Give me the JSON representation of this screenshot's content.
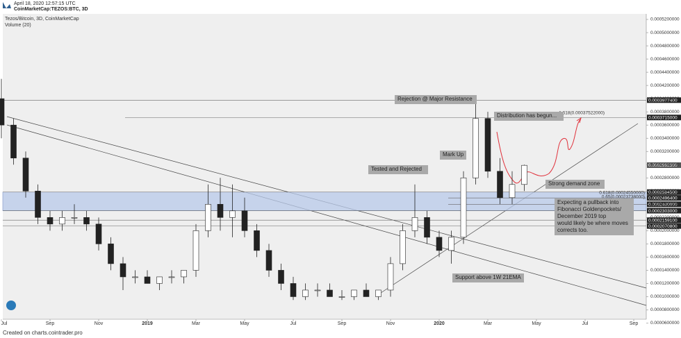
{
  "header": {
    "timestamp": "April 18, 2020 12:57:15 UTC",
    "symbol": "CoinMarketCap:TEZOS:BTC, 3D"
  },
  "footer": "Created on charts.cointrader.pro",
  "chart_data": {
    "type": "candlestick",
    "title": "Tezos/Bitcoin, 3D, CoinMarketCap",
    "subtitle": "Volume (20)",
    "categories": [
      "Jul",
      null,
      null,
      null,
      "Sep",
      null,
      null,
      null,
      "Nov",
      null,
      null,
      null,
      "2019",
      null,
      null,
      null,
      "Mar",
      null,
      null,
      null,
      "May",
      null,
      null,
      null,
      "Jul",
      null,
      null,
      null,
      "Sep",
      null,
      null,
      null,
      "Nov",
      null,
      null,
      null,
      "2020",
      null,
      null,
      null,
      "Mar",
      null,
      null,
      null,
      "May",
      null,
      null,
      null,
      "Jul",
      null,
      null,
      null,
      "Sep",
      null
    ],
    "open": [
      0.0004,
      0.00036,
      0.00031,
      0.00026,
      0.00022,
      0.00021,
      0.00022,
      0.00022,
      0.00021,
      0.00018,
      0.00015,
      0.00013,
      0.00013,
      0.00012,
      0.00013,
      0.00013,
      0.00014,
      0.0002,
      0.00024,
      0.00022,
      0.00023,
      0.0002,
      0.00017,
      0.00014,
      0.00012,
      0.0001,
      0.00011,
      0.00011,
      0.0001,
      0.0001,
      0.00011,
      0.0001,
      0.00011,
      0.00015,
      0.0002,
      0.00022,
      0.00019,
      0.00017,
      0.00019,
      0.00028,
      0.00037,
      0.00029,
      0.00025,
      0.00027,
      null,
      null,
      null,
      null,
      null,
      null,
      null,
      null,
      null,
      null
    ],
    "high": [
      0.00043,
      0.00037,
      0.00032,
      0.00027,
      0.00023,
      0.00023,
      0.00024,
      0.00023,
      0.00022,
      0.00019,
      0.00016,
      0.00014,
      0.00014,
      0.00013,
      0.00014,
      0.00014,
      0.00021,
      0.00027,
      0.00028,
      0.00027,
      0.00025,
      0.00021,
      0.00018,
      0.00015,
      0.00013,
      0.00012,
      0.00012,
      0.00012,
      0.00011,
      0.00011,
      0.00012,
      0.00011,
      0.00016,
      0.00021,
      0.00027,
      0.00023,
      0.0002,
      0.0002,
      0.00029,
      0.000398,
      0.00038,
      0.00031,
      0.00029,
      0.0003,
      null,
      null,
      null,
      null,
      null,
      null,
      null,
      null,
      null,
      null
    ],
    "low": [
      0.00034,
      0.0003,
      0.00025,
      0.00021,
      0.0002,
      0.0002,
      0.00021,
      0.0002,
      0.00017,
      0.00014,
      0.00011,
      0.00012,
      0.00012,
      0.00011,
      0.00012,
      0.00012,
      0.00013,
      0.00019,
      0.0002,
      0.00019,
      0.00019,
      0.00016,
      0.00013,
      0.00011,
      9.5e-05,
      9.5e-05,
      0.0001,
      0.0001,
      9.5e-05,
      9.5e-05,
      0.0001,
      9.5e-05,
      0.0001,
      0.00014,
      0.00019,
      0.00018,
      0.00016,
      0.00015,
      0.00018,
      0.00027,
      0.00028,
      0.00024,
      0.00024,
      0.00026,
      null,
      null,
      null,
      null,
      null,
      null,
      null,
      null,
      null,
      null
    ],
    "close": [
      0.00036,
      0.00031,
      0.00026,
      0.00022,
      0.00021,
      0.00022,
      0.00022,
      0.00021,
      0.00018,
      0.00015,
      0.00013,
      0.00013,
      0.00012,
      0.00013,
      0.00013,
      0.00014,
      0.0002,
      0.00024,
      0.00022,
      0.00023,
      0.0002,
      0.00017,
      0.00014,
      0.00012,
      0.0001,
      0.00011,
      0.00011,
      0.0001,
      0.0001,
      0.00011,
      0.0001,
      0.00011,
      0.00015,
      0.0002,
      0.00022,
      0.00019,
      0.00017,
      0.00019,
      0.00028,
      0.00037,
      0.00029,
      0.00025,
      0.00027,
      0.000299,
      null,
      null,
      null,
      null,
      null,
      null,
      null,
      null,
      null,
      null
    ],
    "up_color": "#ffffff",
    "down_color": "#222222",
    "ylim": [
      6e-05,
      0.00053
    ],
    "yticks": [
      {
        "value": 6e-05,
        "label": "0.0000600000"
      },
      {
        "value": 8e-05,
        "label": "0.0000800000"
      },
      {
        "value": 0.0001,
        "label": "0.0001000000"
      },
      {
        "value": 0.00012,
        "label": "0.0001200000"
      },
      {
        "value": 0.00014,
        "label": "0.0001400000"
      },
      {
        "value": 0.00016,
        "label": "0.0001600000"
      },
      {
        "value": 0.00018,
        "label": "0.0001800000"
      },
      {
        "value": 0.0002,
        "label": "0.0002000000"
      },
      {
        "value": 0.00022,
        "label": "0.0002200000"
      },
      {
        "value": 0.00024,
        "label": "0.0002400000"
      },
      {
        "value": 0.00026,
        "label": "0.0002600000"
      },
      {
        "value": 0.00028,
        "label": "0.0002800000"
      },
      {
        "value": 0.0003,
        "label": "0.0003000000"
      },
      {
        "value": 0.00032,
        "label": "0.0003200000"
      },
      {
        "value": 0.00034,
        "label": "0.0003400000"
      },
      {
        "value": 0.00036,
        "label": "0.0003600000"
      },
      {
        "value": 0.00038,
        "label": "0.0003800000"
      },
      {
        "value": 0.0004,
        "label": "0.0004000000"
      },
      {
        "value": 0.00042,
        "label": "0.0004200000"
      },
      {
        "value": 0.00044,
        "label": "0.0004400000"
      },
      {
        "value": 0.00046,
        "label": "0.0004600000"
      },
      {
        "value": 0.00048,
        "label": "0.0004800000"
      },
      {
        "value": 0.0005,
        "label": "0.0005000000"
      },
      {
        "value": 0.00052,
        "label": "0.0005200000"
      }
    ],
    "grid": false,
    "price_levels": [
      {
        "value": 0.00039774,
        "label": "0.0003977400"
      },
      {
        "value": 0.0003715,
        "label": "0.0003715000"
      },
      {
        "value": 0.00029923,
        "label": "0.0002992300"
      },
      {
        "value": 0.00025845,
        "label": "0.0002584500"
      },
      {
        "value": 0.00024964,
        "label": "0.0002496400"
      },
      {
        "value": 0.00024,
        "label": "0.0002400000"
      },
      {
        "value": 0.0002303,
        "label": "0.0002303000"
      },
      {
        "value": 0.00021591,
        "label": "0.0002159100"
      },
      {
        "value": 0.00020708,
        "label": "0.0002070800"
      }
    ],
    "fib_labels": [
      "1.618(0.00037522000)",
      "0.618(0.00024550000)",
      "0.65(0.00023738000)"
    ],
    "annotations": [
      {
        "lines": [
          "Rejection @ Major Resistance"
        ]
      },
      {
        "lines": [
          "Distribution has begun..."
        ]
      },
      {
        "lines": [
          "Mark Up"
        ]
      },
      {
        "lines": [
          "Tested and Rejected"
        ]
      },
      {
        "lines": [
          "Strong demand zone"
        ]
      },
      {
        "lines": [
          "Support above 1W 21EMA"
        ]
      },
      {
        "lines": [
          "Expecting a pullback into",
          "Fibonacci Goldenpockets/",
          "December 2019 top",
          "would likely be where moves",
          "corrects too."
        ]
      }
    ]
  }
}
